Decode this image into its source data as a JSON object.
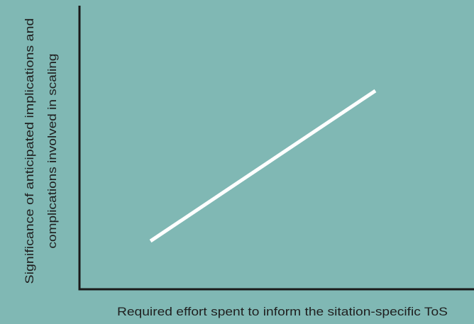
{
  "chart_data": {
    "type": "line",
    "xlabel": "Required effort spent to inform the sitation-specific ToS",
    "ylabel_lines": [
      "Significance of anticipated implications and",
      "complications involved in scaling"
    ],
    "xlim": [
      0,
      1
    ],
    "ylim": [
      0,
      1
    ],
    "series": [
      {
        "x": [
          0.18,
          0.75
        ],
        "y": [
          0.17,
          0.7
        ]
      }
    ],
    "grid": false,
    "legend": "none"
  },
  "colors": {
    "background": "#80b8b4",
    "axis": "#1a1a1a",
    "line": "#ffffff",
    "text": "#1f1f1f"
  }
}
